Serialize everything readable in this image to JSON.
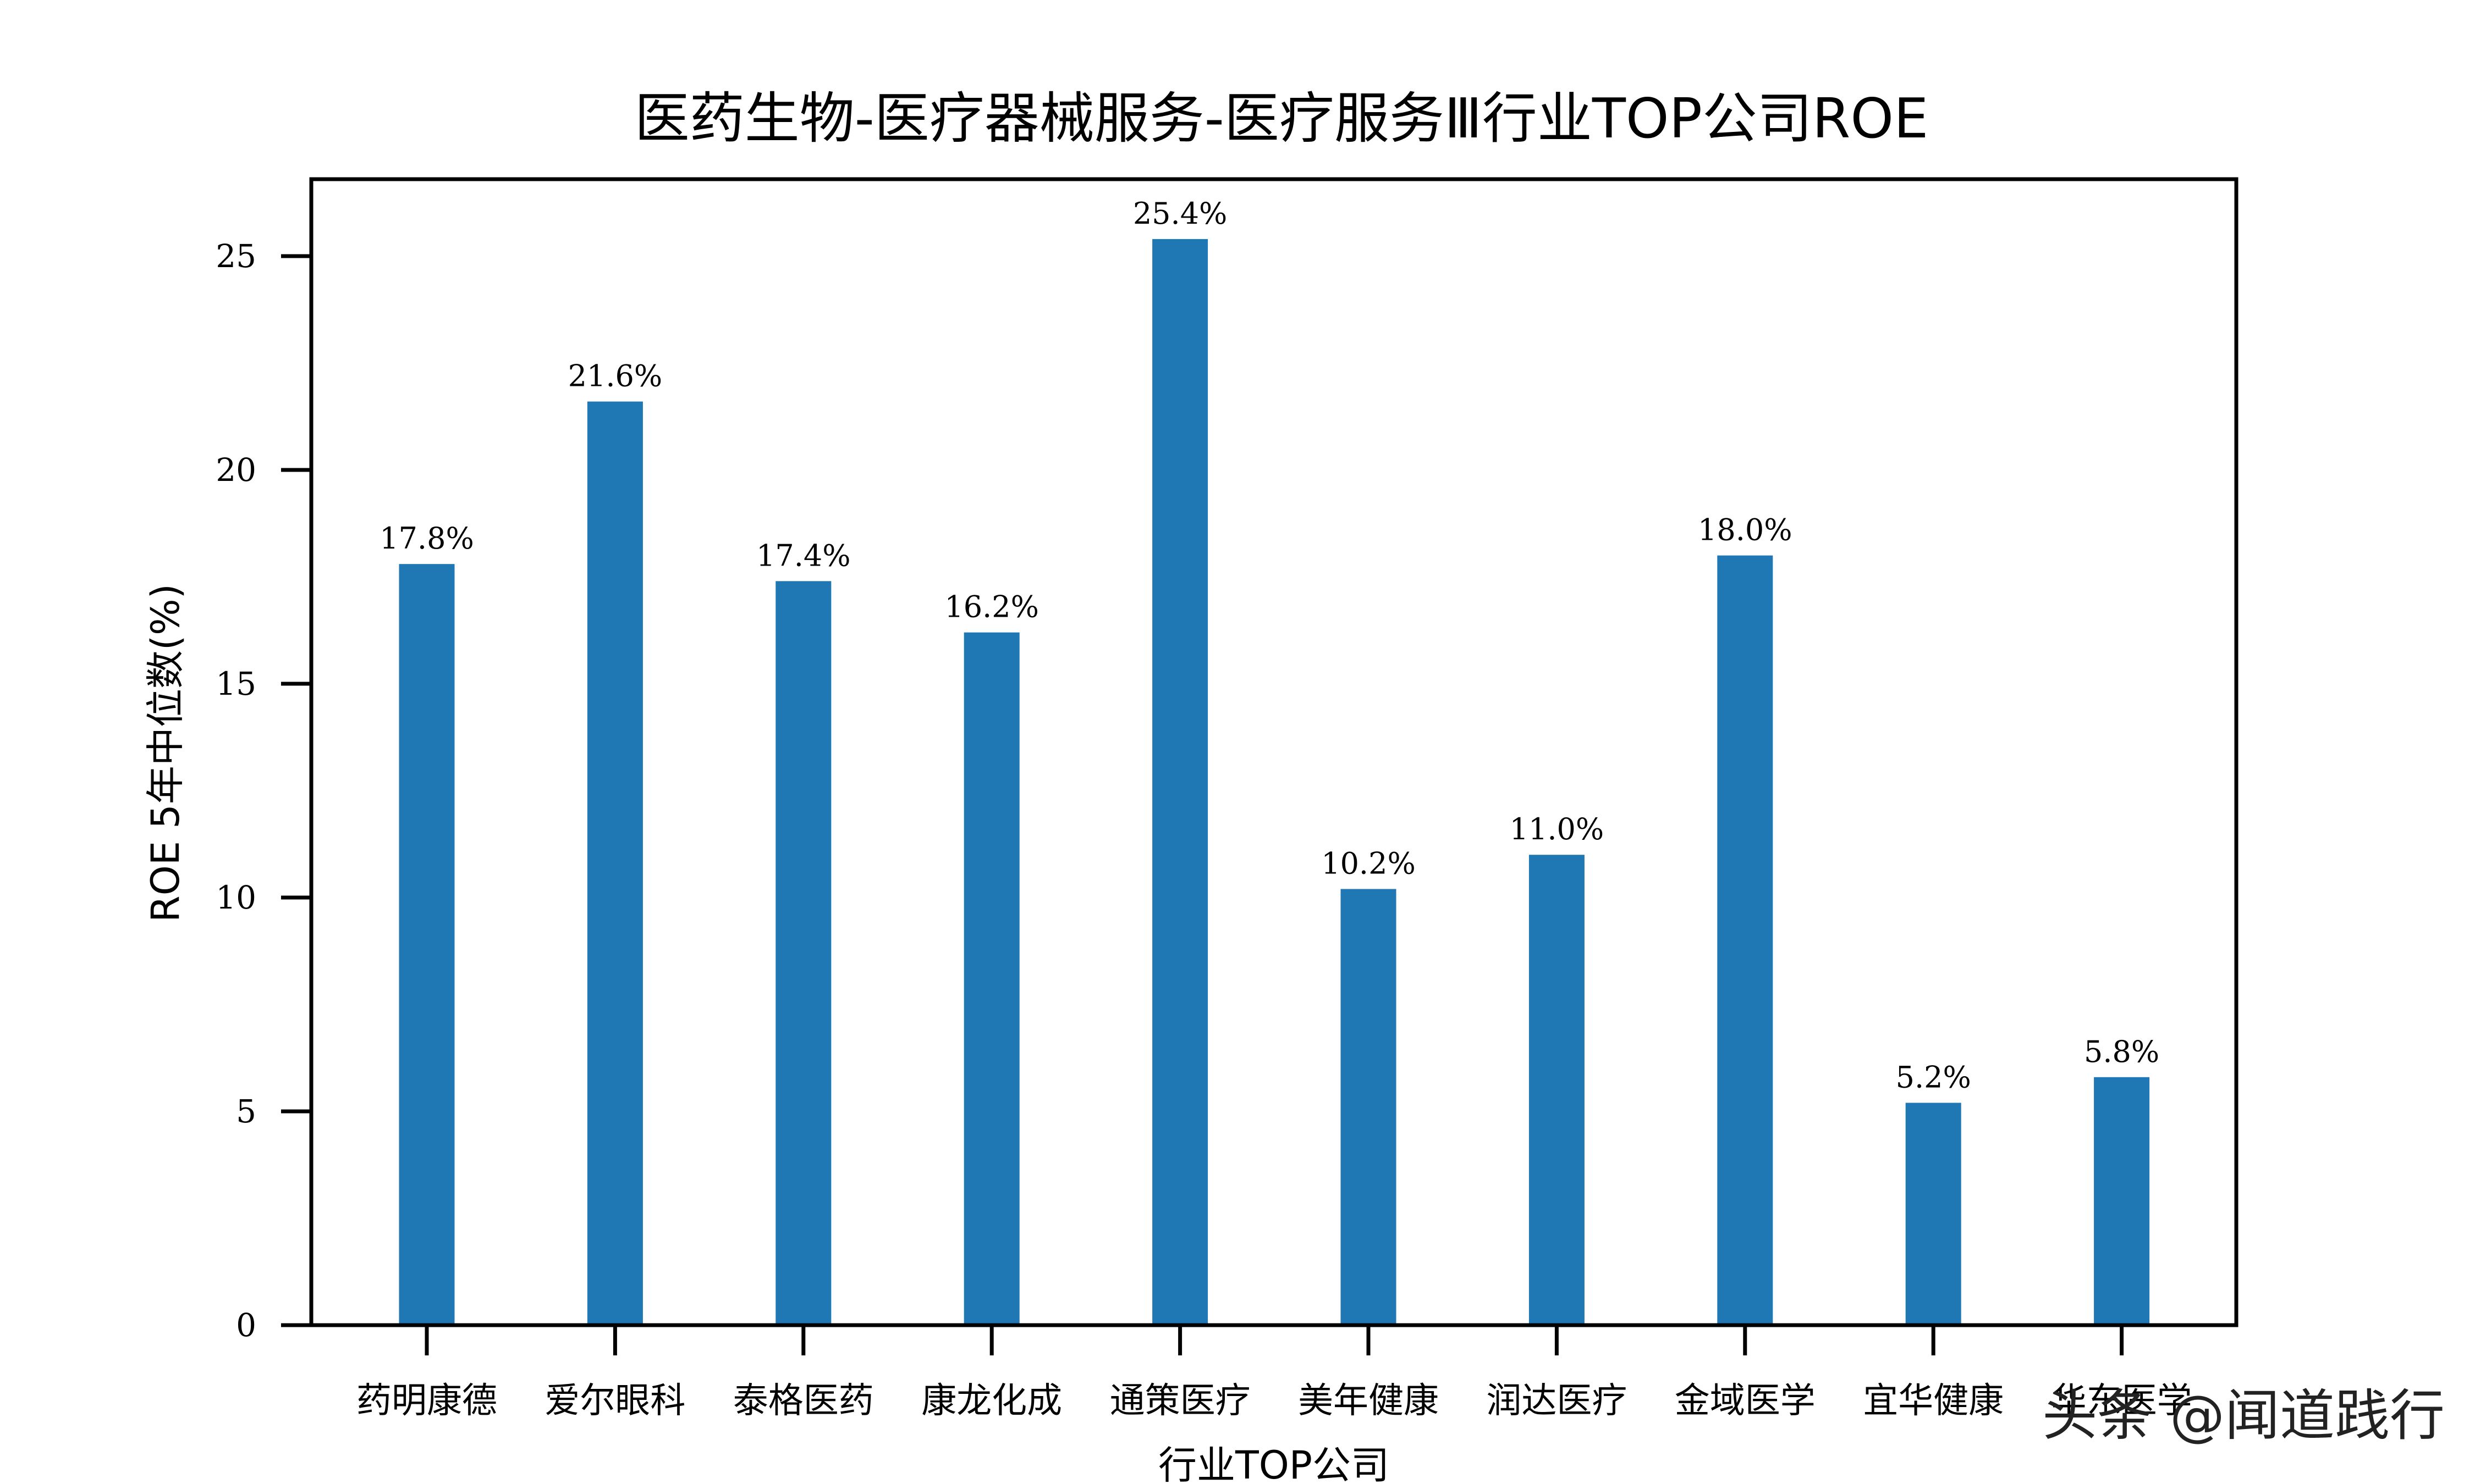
{
  "chart_data": {
    "type": "bar",
    "title": "医药生物-医疗器械服务-医疗服务Ⅲ行业TOP公司ROE",
    "xlabel": "行业TOP公司",
    "ylabel": "ROE 5年中位数(%)",
    "categories": [
      "药明康德",
      "爱尔眼科",
      "泰格医药",
      "康龙化成",
      "通策医疗",
      "美年健康",
      "润达医疗",
      "金域医学",
      "宜华健康",
      "华东医学"
    ],
    "values": [
      17.8,
      21.6,
      17.4,
      16.2,
      25.4,
      10.2,
      11.0,
      18.0,
      5.2,
      5.8
    ],
    "data_labels": [
      "17.8%",
      "21.6%",
      "17.4%",
      "16.2%",
      "25.4%",
      "10.2%",
      "11.0%",
      "18.0%",
      "5.2%",
      "5.8%"
    ],
    "yticks": [
      "0",
      "5",
      "10",
      "15",
      "20",
      "25"
    ],
    "ylim": [
      0,
      26.8
    ],
    "bar_color": "#1f77b4",
    "grid": false
  },
  "watermark": "头条 @闻道践行"
}
